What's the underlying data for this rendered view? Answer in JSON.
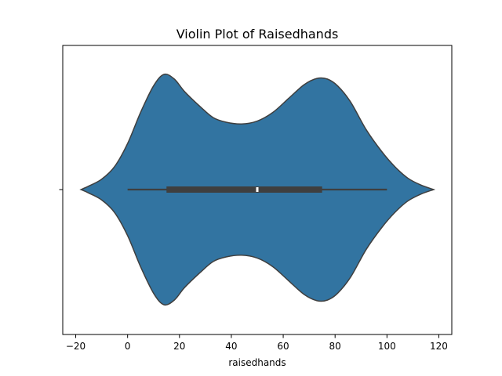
{
  "chart_data": {
    "type": "violin",
    "title": "Violin Plot of Raisedhands",
    "xlabel": "raisedhands",
    "ylabel": "",
    "xlim": [
      -25,
      125
    ],
    "xticks": [
      -20,
      0,
      20,
      40,
      60,
      80,
      100,
      120
    ],
    "xtick_labels": [
      "−20",
      "0",
      "20",
      "40",
      "60",
      "80",
      "100",
      "120"
    ],
    "y_categories": [
      ""
    ],
    "fill_color": "#3274a1",
    "edge_color": "#3f3f3f",
    "box": {
      "whisker_low": 0,
      "q1": 15,
      "median": 50,
      "q3": 75,
      "whisker_high": 100
    },
    "density_profile": [
      [
        -18,
        0.0
      ],
      [
        -15,
        0.03
      ],
      [
        -10,
        0.09
      ],
      [
        -5,
        0.2
      ],
      [
        0,
        0.4
      ],
      [
        5,
        0.67
      ],
      [
        10,
        0.9
      ],
      [
        14,
        1.0
      ],
      [
        18,
        0.96
      ],
      [
        22,
        0.85
      ],
      [
        28,
        0.72
      ],
      [
        33,
        0.625
      ],
      [
        38,
        0.585
      ],
      [
        44,
        0.57
      ],
      [
        50,
        0.595
      ],
      [
        56,
        0.67
      ],
      [
        62,
        0.79
      ],
      [
        68,
        0.91
      ],
      [
        73,
        0.965
      ],
      [
        77,
        0.96
      ],
      [
        81,
        0.9
      ],
      [
        86,
        0.76
      ],
      [
        92,
        0.52
      ],
      [
        98,
        0.33
      ],
      [
        103,
        0.2
      ],
      [
        108,
        0.1
      ],
      [
        113,
        0.04
      ],
      [
        118,
        0.0
      ]
    ]
  }
}
